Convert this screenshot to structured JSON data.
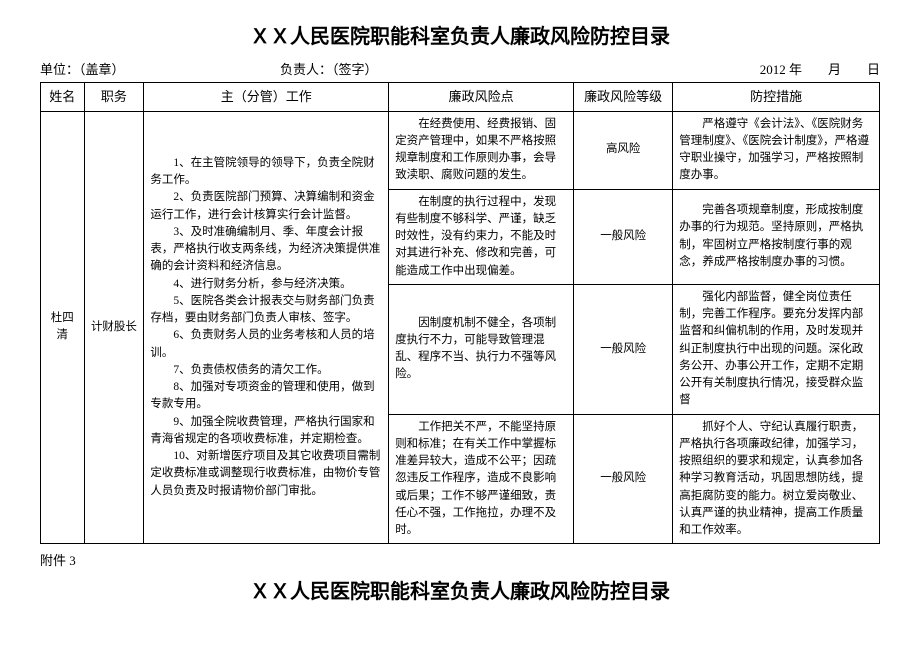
{
  "title": "ＸＸ人民医院职能科室负责人廉政风险防控目录",
  "header": {
    "unit_label": "单位：（盖章）",
    "responsible_label": "负责人：（签字）",
    "date_label": "2012 年　　月　　日"
  },
  "columns": {
    "name": "姓名",
    "position": "职务",
    "work": "主（分管）工作",
    "risk_point": "廉政风险点",
    "risk_level": "廉政风险等级",
    "measures": "防控措施"
  },
  "person": {
    "name": "杜四清",
    "position": "计财股长"
  },
  "work_items": {
    "l1": "1、在主管院领导的领导下，负责全院财务工作。",
    "l2": "2、负责医院部门预算、决算编制和资金运行工作，进行会计核算实行会计监督。",
    "l3": "3、及时准确编制月、季、年度会计报表，严格执行收支两条线，为经济决策提供准确的会计资料和经济信息。",
    "l4": "4、进行财务分析，参与经济决策。",
    "l5": "5、医院各类会计报表交与财务部门负责存档，要由财务部门负责人审核、签字。",
    "l6": "6、负责财务人员的业务考核和人员的培训。",
    "l7": "7、负责债权债务的清欠工作。",
    "l8": "8、加强对专项资金的管理和使用，做到专款专用。",
    "l9": "9、加强全院收费管理，严格执行国家和青海省规定的各项收费标准，并定期检查。",
    "l10": "10、对新增医疗项目及其它收费项目需制定收费标准或调整现行收费标准，由物价专管人员负责及时报请物价部门审批。"
  },
  "rows": [
    {
      "risk_point": "在经费使用、经费报销、固定资产管理中，如果不严格按照规章制度和工作原则办事，会导致渎职、腐败问题的发生。",
      "risk_level": "高风险",
      "measures": "严格遵守《会计法》、《医院财务管理制度》、《医院会计制度》，严格遵守职业操守，加强学习，严格按照制度办事。"
    },
    {
      "risk_point": "在制度的执行过程中，发现有些制度不够科学、严谨，缺乏时效性，没有约束力，不能及时对其进行补充、修改和完善，可能造成工作中出现偏差。",
      "risk_level": "一般风险",
      "measures": "完善各项规章制度，形成按制度办事的行为规范。坚持原则，严格执制，牢固树立严格按制度行事的观念，养成严格按制度办事的习惯。"
    },
    {
      "risk_point": "因制度机制不健全，各项制度执行不力，可能导致管理混乱、程序不当、执行力不强等风险。",
      "risk_level": "一般风险",
      "measures": "强化内部监督，健全岗位责任制，完善工作程序。要充分发挥内部监督和纠偏机制的作用，及时发现并纠正制度执行中出现的问题。深化政务公开、办事公开工作，定期不定期公开有关制度执行情况，接受群众监督"
    },
    {
      "risk_point": "工作把关不严，不能坚持原则和标准；在有关工作中掌握标准差异较大，造成不公平；因疏忽违反工作程序，造成不良影响或后果；工作不够严谨细致，责任心不强，工作拖拉，办理不及时。",
      "risk_level": "一般风险",
      "measures": "抓好个人、守纪认真履行职责，严格执行各项廉政纪律，加强学习，按照组织的要求和规定，认真参加各种学习教育活动，巩固思想防线，提高拒腐防变的能力。树立爱岗敬业、认真严谨的执业精神，提高工作质量和工作效率。"
    }
  ],
  "attach_label": "附件 3",
  "title2": "ＸＸ人民医院职能科室负责人廉政风险防控目录"
}
